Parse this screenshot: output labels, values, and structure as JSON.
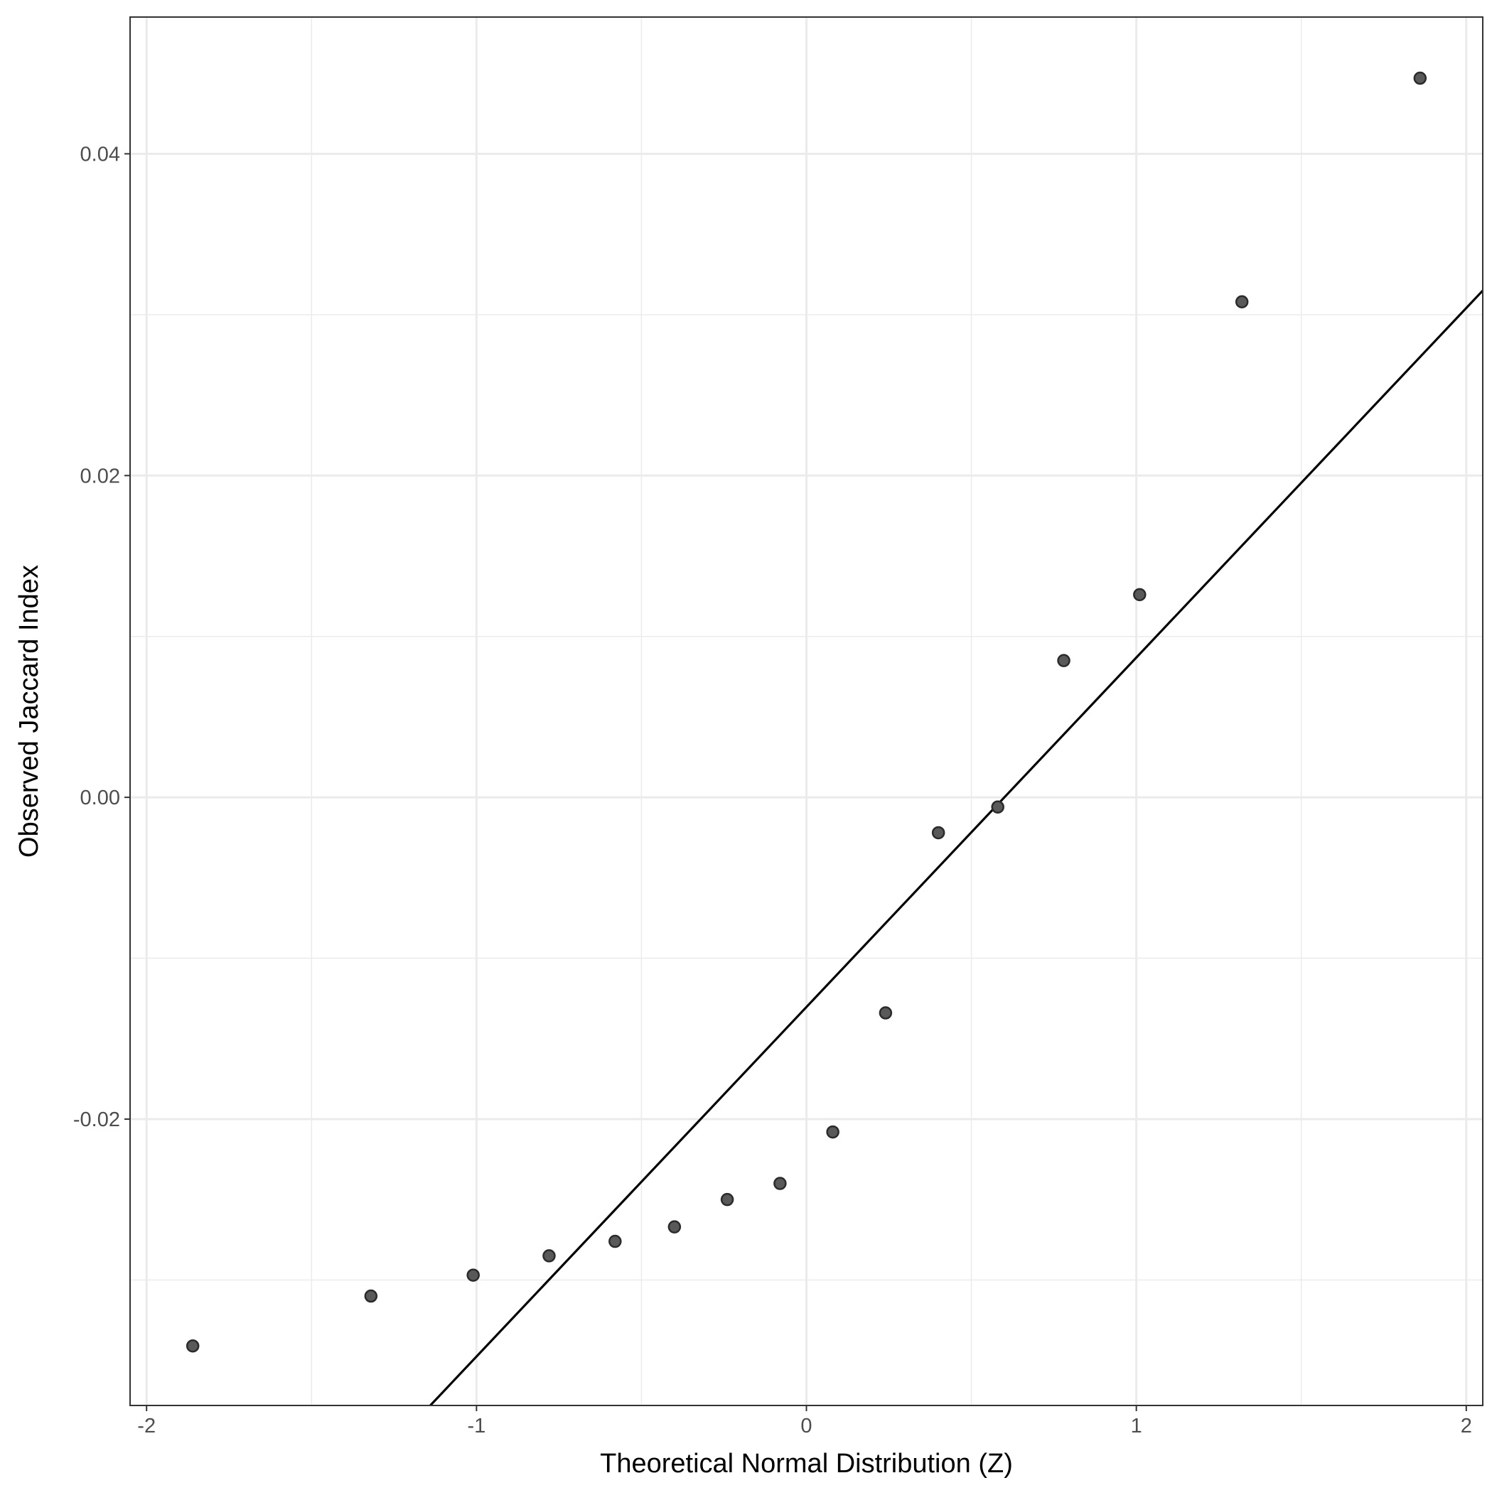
{
  "chart_data": {
    "type": "scatter",
    "title": "",
    "xlabel": "Theoretical Normal Distribution (Z)",
    "ylabel": "Observed Jaccard Index",
    "xlim": [
      -2.05,
      2.05
    ],
    "ylim": [
      -0.0378,
      0.0485
    ],
    "x_ticks": [
      -2,
      -1,
      0,
      1,
      2
    ],
    "x_tick_labels": [
      "-2",
      "-1",
      "0",
      "1",
      "2"
    ],
    "y_ticks": [
      -0.02,
      0.0,
      0.02,
      0.04
    ],
    "y_tick_labels": [
      "-0.02",
      "0.00",
      "0.02",
      "0.04"
    ],
    "grid": true,
    "points": [
      {
        "x": -1.86,
        "y": -0.0341
      },
      {
        "x": -1.32,
        "y": -0.031
      },
      {
        "x": -1.01,
        "y": -0.0297
      },
      {
        "x": -0.78,
        "y": -0.0285
      },
      {
        "x": -0.58,
        "y": -0.0276
      },
      {
        "x": -0.4,
        "y": -0.0267
      },
      {
        "x": -0.24,
        "y": -0.025
      },
      {
        "x": -0.08,
        "y": -0.024
      },
      {
        "x": 0.08,
        "y": -0.0208
      },
      {
        "x": 0.24,
        "y": -0.0134
      },
      {
        "x": 0.4,
        "y": -0.0022
      },
      {
        "x": 0.58,
        "y": -0.0006
      },
      {
        "x": 0.78,
        "y": 0.0085
      },
      {
        "x": 1.01,
        "y": 0.0126
      },
      {
        "x": 1.32,
        "y": 0.0308
      },
      {
        "x": 1.86,
        "y": 0.0447
      }
    ],
    "reference_line": {
      "x": [
        -1.14,
        2.05
      ],
      "y": [
        -0.0378,
        0.0315
      ]
    },
    "point_color": "#595959",
    "line_color": "#000000",
    "grid_color": "#ebebeb"
  }
}
